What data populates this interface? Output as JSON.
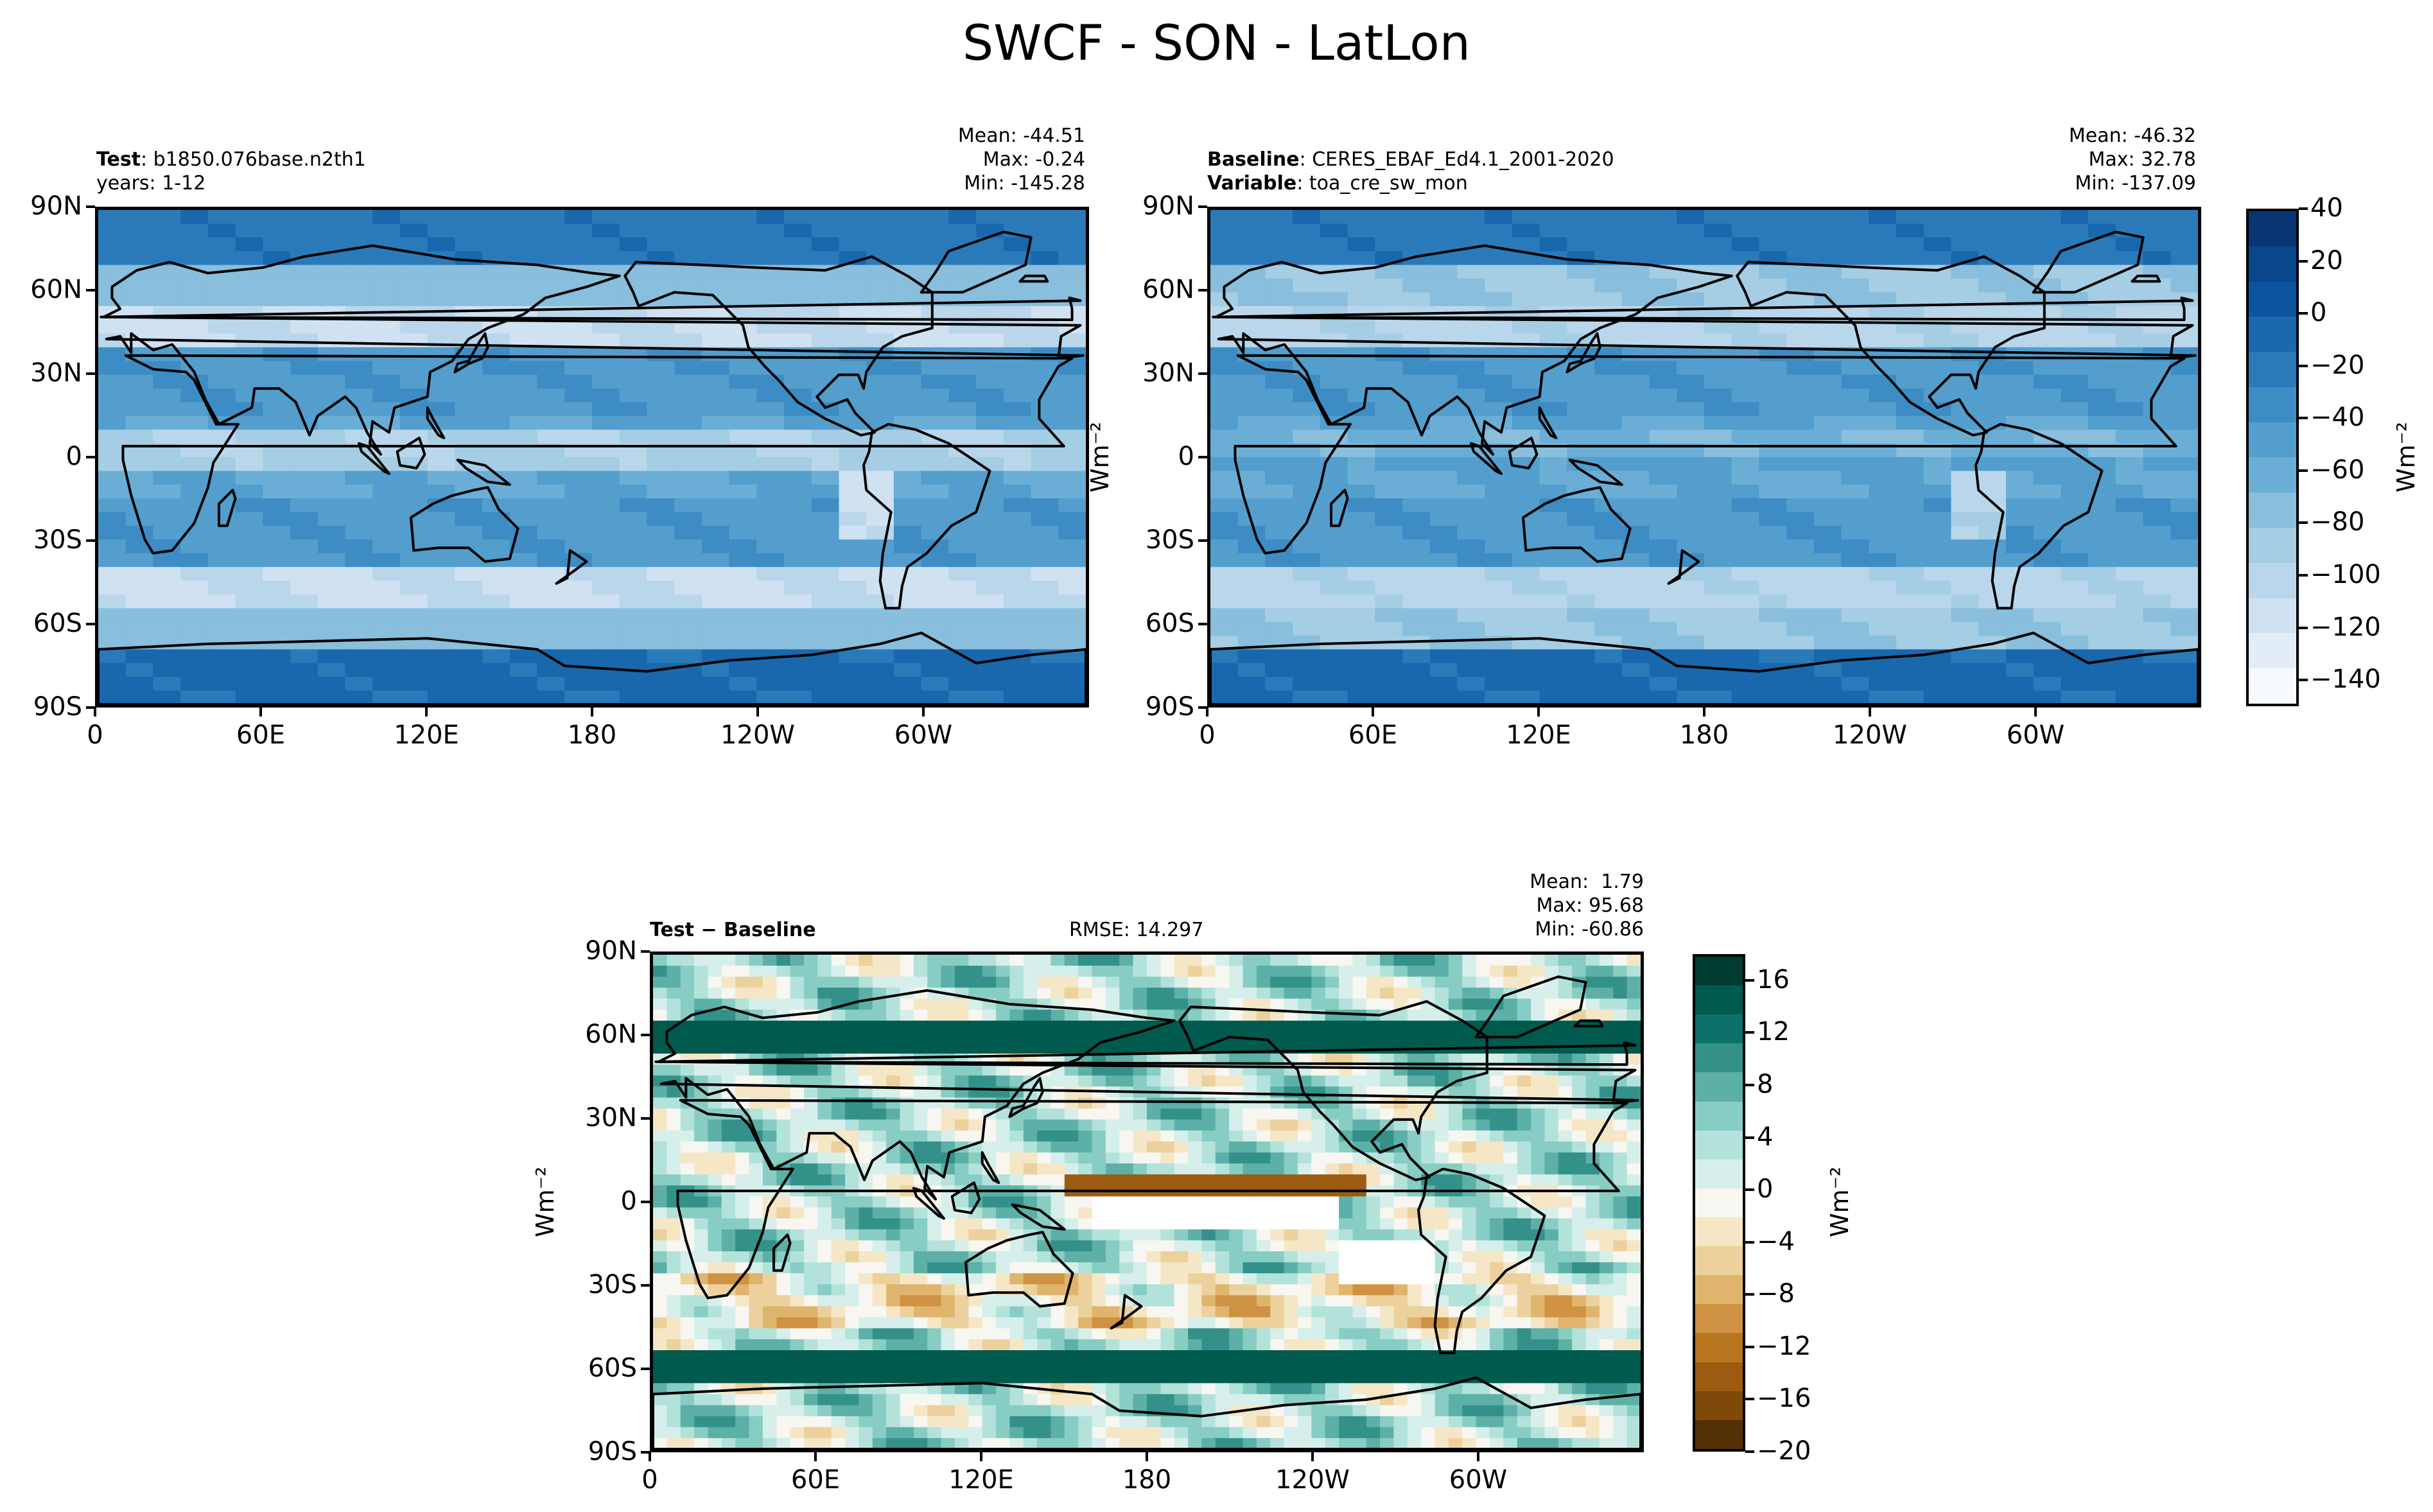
{
  "figure": {
    "suptitle": "SWCF - SON - LatLon"
  },
  "panels": {
    "test": {
      "left_bold": "Test",
      "left_text": ": b1850.076base.n2th1",
      "left_line2": "years: 1-12",
      "stats": [
        "Mean: -44.51",
        "Max: -0.24",
        "Min: -145.28"
      ]
    },
    "baseline": {
      "left_bold": "Baseline",
      "left_text": ": CERES_EBAF_Ed4.1_2001-2020",
      "left_bold2": "Variable",
      "left_text2": ": toa_cre_sw_mon",
      "stats": [
        "Mean: -46.32",
        "Max: 32.78",
        "Min: -137.09"
      ]
    },
    "diff": {
      "left_bold": "Test − Baseline",
      "center_text": "RMSE: 14.297",
      "stats": [
        "Mean:  1.79",
        "Max: 95.68",
        "Min: -60.86"
      ]
    }
  },
  "colors": {
    "main_cmap": [
      "#f7fbff",
      "#e2edf8",
      "#d0e1f2",
      "#bad6eb",
      "#a5cde3",
      "#89bedc",
      "#6aaed6",
      "#539ecd",
      "#3d8dc4",
      "#2a7ab9",
      "#1967ad",
      "#0b559f",
      "#08468b",
      "#083674"
    ],
    "diff_cmap": [
      "#543005",
      "#7f4909",
      "#9c5b10",
      "#b87520",
      "#cf9242",
      "#dfb56e",
      "#ecd19c",
      "#f5e7c6",
      "#f7f6f0",
      "#d6efeb",
      "#b3e2db",
      "#88cdc3",
      "#5cb0a7",
      "#33918a",
      "#0c7168",
      "#005a4e",
      "#003c30"
    ]
  },
  "chart_data": [
    {
      "type": "heatmap",
      "name": "Test",
      "units": "Wm⁻²",
      "x_ticks": [
        "0",
        "60E",
        "120E",
        "180",
        "120W",
        "60W"
      ],
      "y_ticks": [
        "90N",
        "60N",
        "30N",
        "0",
        "30S",
        "60S",
        "90S"
      ],
      "xlim": [
        0,
        360
      ],
      "ylim": [
        -90,
        90
      ],
      "mean": -44.51,
      "max": -0.24,
      "min": -145.28
    },
    {
      "type": "heatmap",
      "name": "Baseline",
      "units": "Wm⁻²",
      "x_ticks": [
        "0",
        "60E",
        "120E",
        "180",
        "120W",
        "60W"
      ],
      "y_ticks": [
        "90N",
        "60N",
        "30N",
        "0",
        "30S",
        "60S",
        "90S"
      ],
      "xlim": [
        0,
        360
      ],
      "ylim": [
        -90,
        90
      ],
      "mean": -46.32,
      "max": 32.78,
      "min": -137.09
    },
    {
      "type": "heatmap",
      "name": "Test − Baseline",
      "units": "Wm⁻²",
      "x_ticks": [
        "0",
        "60E",
        "120E",
        "180",
        "120W",
        "60W"
      ],
      "y_ticks": [
        "90N",
        "60N",
        "30N",
        "0",
        "30S",
        "60S",
        "90S"
      ],
      "xlim": [
        0,
        360
      ],
      "ylim": [
        -90,
        90
      ],
      "mean": 1.79,
      "max": 95.68,
      "min": -60.86,
      "rmse": 14.297
    }
  ],
  "colorbars": {
    "main": {
      "label": "Wm⁻²",
      "range": [
        -150,
        40
      ],
      "ticks": [
        "40",
        "20",
        "0",
        "−20",
        "−40",
        "−60",
        "−80",
        "−100",
        "−120",
        "−140"
      ],
      "tick_values": [
        40,
        20,
        0,
        -20,
        -40,
        -60,
        -80,
        -100,
        -120,
        -140
      ]
    },
    "diff": {
      "label": "Wm⁻²",
      "range": [
        -20,
        18
      ],
      "ticks": [
        "16",
        "12",
        "8",
        "4",
        "0",
        "−4",
        "−8",
        "−12",
        "−16",
        "−20"
      ],
      "tick_values": [
        16,
        12,
        8,
        4,
        0,
        -4,
        -8,
        -12,
        -16,
        -20
      ]
    }
  },
  "axis_units": {
    "map_ylabel": "Wm⁻²"
  }
}
